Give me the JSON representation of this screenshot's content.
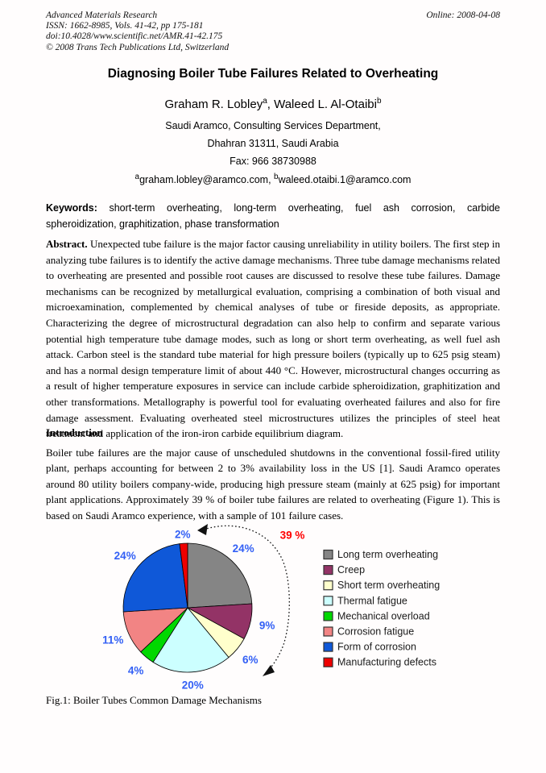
{
  "header": {
    "journal": "Advanced Materials Research",
    "issn_line": "ISSN: 1662-8985, Vols. 41-42, pp 175-181",
    "doi_line": "doi:10.4028/www.scientific.net/AMR.41-42.175",
    "copyright_line": "© 2008 Trans Tech Publications Ltd, Switzerland",
    "online_date": "Online: 2008-04-08"
  },
  "title": "Diagnosing Boiler Tube Failures Related to Overheating",
  "authors": {
    "author1": "Graham R. Lobley",
    "author1_sup": "a",
    "separator": ", ",
    "author2": "Waleed L. Al-Otaibi",
    "author2_sup": "b",
    "affiliation1": "Saudi Aramco, Consulting Services Department,",
    "affiliation2": "Dhahran 31311, Saudi Arabia",
    "fax": "Fax:  966 38730988",
    "email1_sup": "a",
    "email1": "graham.lobley@aramco.com,",
    "email2_sup": "b",
    "email2": "waleed.otaibi.1@aramco.com"
  },
  "keywords": {
    "label": "Keywords:",
    "text": "short-term overheating, long-term overheating, fuel ash corrosion, carbide spheroidization, graphitization, phase transformation"
  },
  "abstract": {
    "label": "Abstract.",
    "text": "Unexpected tube failure is the major factor causing unreliability in utility boilers.  The first step in analyzing tube failures is to identify the active damage mechanisms.  Three tube damage mechanisms related to overheating are presented and possible root causes are discussed to resolve these tube failures.  Damage mechanisms can be recognized by metallurgical evaluation, comprising a combination of both visual and microexamination, complemented by chemical analyses of tube or fireside deposits, as appropriate.  Characterizing the degree of microstructural degradation can also help to confirm and separate various potential high temperature tube damage modes, such as long or short term overheating, as well fuel ash attack.  Carbon steel is the standard tube material for high pressure boilers (typically up to 625 psig steam) and has a normal design temperature limit of about 440 °C.  However, microstructural changes occurring as a result of higher temperature exposures in service can include carbide spheroidization, graphitization and other transformations.  Metallography is powerful tool for evaluating overheated failures and also for fire damage assessment.  Evaluating overheated steel microstructures utilizes the principles of steel heat treatment and application of the iron-iron carbide equilibrium diagram."
  },
  "introduction": {
    "heading": "Introduction",
    "text": "Boiler tube failures are the major cause of unscheduled shutdowns in the conventional fossil-fired utility plant, perhaps accounting for between 2 to 3% availability loss in the US [1].  Saudi Aramco operates around 80 utility boilers company-wide, producing high pressure steam (mainly at 625 psig) for important plant applications. Approximately 39 % of boiler tube failures are related to overheating (Figure 1). This is based on Saudi Aramco experience, with a sample of 101 failure cases."
  },
  "figure": {
    "caption": "Fig.1: Boiler Tubes Common Damage Mechanisms"
  },
  "chart_data": {
    "type": "pie",
    "title": "",
    "direction": "clockwise",
    "start_angle_deg": 0,
    "legend_position": "right",
    "label_color": "#3360F5",
    "annotation": {
      "text": "39 %",
      "color": "#FF0000"
    },
    "series": [
      {
        "name": "Long term overheating",
        "value": 24,
        "label": "24%",
        "color": "#858585"
      },
      {
        "name": "Creep",
        "value": 9,
        "label": "9%",
        "color": "#933366"
      },
      {
        "name": "Short term overheating",
        "value": 6,
        "label": "6%",
        "color": "#FFFFCC"
      },
      {
        "name": "Thermal fatigue",
        "value": 20,
        "label": "20%",
        "color": "#CCFFFF"
      },
      {
        "name": "Mechanical overload",
        "value": 4,
        "label": "4%",
        "color": "#00D800"
      },
      {
        "name": "Corrosion fatigue",
        "value": 11,
        "label": "11%",
        "color": "#F28484"
      },
      {
        "name": "Form of corrosion",
        "value": 24,
        "label": "24%",
        "color": "#0F58D8"
      },
      {
        "name": "Manufacturing defects",
        "value": 2,
        "label": "2%",
        "color": "#EE0000"
      }
    ]
  }
}
